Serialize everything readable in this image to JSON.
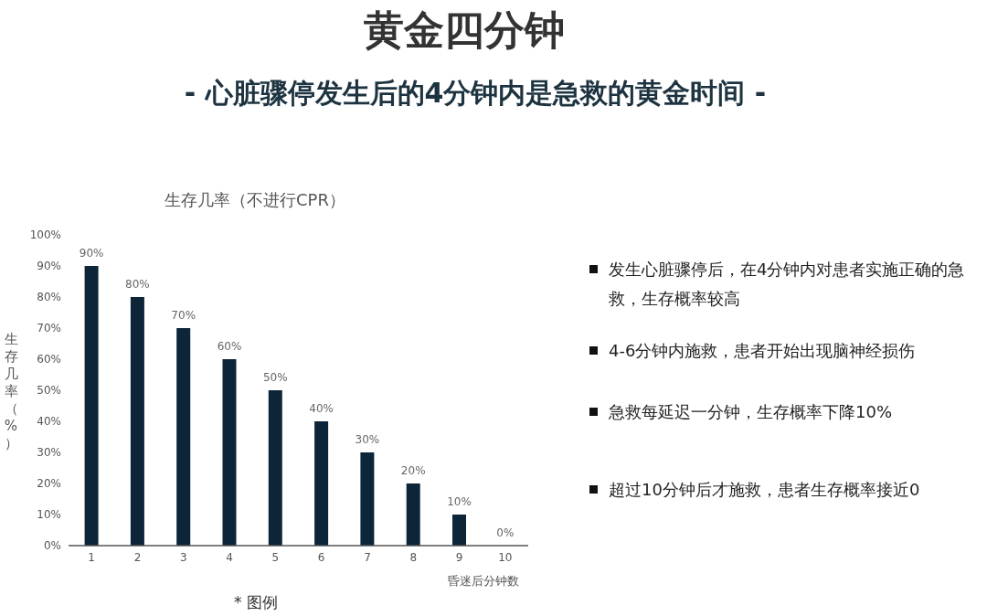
{
  "chart_data": {
    "type": "bar",
    "title": "黄金四分钟",
    "subtitle": "- 心脏骤停发生后的4分钟内是急救的黄金时间 -",
    "annotations": [
      "生存几率（不进行CPR）",
      "发生心脏骤停后，在4分钟内对患者实施正确的急救，生存概率较高",
      "4-6分钟内施救，患者开始出现脑神经损伤",
      "急救每延迟一分钟，生存概率下降10%",
      "超过10分钟后才施救，患者生存概率接近0",
      "* 图例"
    ],
    "xlabel": "昏迷后分钟数",
    "ylabel": "生存几率（%）",
    "categories": [
      "1",
      "2",
      "3",
      "4",
      "5",
      "6",
      "7",
      "8",
      "9",
      "10"
    ],
    "values": [
      90,
      80,
      70,
      60,
      50,
      40,
      30,
      20,
      10,
      0
    ],
    "value_labels": [
      "90%",
      "80%",
      "70%",
      "60%",
      "50%",
      "40%",
      "30%",
      "20%",
      "10%",
      "0%"
    ],
    "color": "#0d2539",
    "ylim": [
      0,
      100
    ],
    "yticks": [
      {
        "value": 0,
        "label": "0%"
      },
      {
        "value": 10,
        "label": "10%"
      },
      {
        "value": 20,
        "label": "20%"
      },
      {
        "value": 30,
        "label": "30%"
      },
      {
        "value": 40,
        "label": "40%"
      },
      {
        "value": 50,
        "label": "50%"
      },
      {
        "value": 60,
        "label": "60%"
      },
      {
        "value": 70,
        "label": "70%"
      },
      {
        "value": 80,
        "label": "80%"
      },
      {
        "value": 90,
        "label": "90%"
      },
      {
        "value": 100,
        "label": "100%"
      }
    ],
    "grid": false,
    "legend": false
  }
}
